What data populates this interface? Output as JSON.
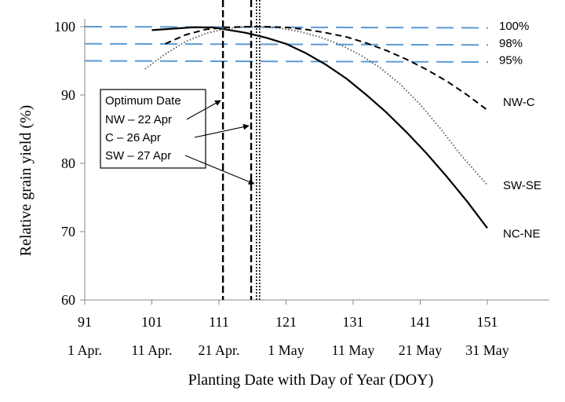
{
  "chart_data": {
    "type": "line",
    "xlabel": "Planting Date with Day of Year (DOY)",
    "ylabel": "Relative grain yield (%)",
    "xlim": [
      91,
      160
    ],
    "ylim": [
      60,
      100
    ],
    "x_ticks": [
      91,
      101,
      111,
      121,
      131,
      141,
      151
    ],
    "x_tick_labels": [
      "91",
      "101",
      "111",
      "121",
      "131",
      "141",
      "151"
    ],
    "date_labels": [
      "1 Apr.",
      "11 Apr.",
      "21 Apr.",
      "1 May",
      "11 May",
      "21 May",
      "31 May"
    ],
    "y_ticks": [
      60,
      70,
      80,
      90,
      100
    ],
    "y_tick_labels": [
      "60",
      "70",
      "80",
      "90",
      "100"
    ],
    "series": [
      {
        "name": "NC-NE",
        "style": "solid",
        "x": [
          101,
          104,
          107,
          110,
          112,
          115,
          118,
          121,
          124,
          127,
          130,
          133,
          136,
          139,
          142,
          145,
          148,
          151
        ],
        "y": [
          99.5,
          99.7,
          99.9,
          99.9,
          99.6,
          99.1,
          98.4,
          97.5,
          96.1,
          94.4,
          92.4,
          90.0,
          87.4,
          84.5,
          81.4,
          78.0,
          74.4,
          70.5
        ]
      },
      {
        "name": "SW-SE",
        "style": "dotted",
        "x": [
          100,
          103,
          106,
          109,
          112,
          115,
          117,
          120,
          123,
          126,
          129,
          132,
          135,
          138,
          141,
          144,
          147,
          151
        ],
        "y": [
          93.8,
          96.0,
          97.8,
          99.0,
          99.7,
          100.0,
          100.0,
          99.8,
          99.3,
          98.5,
          97.4,
          95.9,
          94.0,
          91.6,
          88.6,
          85.1,
          81.3,
          76.8
        ]
      },
      {
        "name": "NW-C",
        "style": "dashed",
        "x": [
          103,
          106,
          109,
          112,
          115,
          118,
          121,
          124,
          127,
          130,
          133,
          136,
          139,
          142,
          145,
          148,
          151
        ],
        "y": [
          97.5,
          98.8,
          99.6,
          99.9,
          100.0,
          100.0,
          99.9,
          99.6,
          99.1,
          98.5,
          97.6,
          96.5,
          95.2,
          93.7,
          92.0,
          90.0,
          87.8
        ]
      }
    ],
    "reference_lines": [
      {
        "label": "100%",
        "y": 100
      },
      {
        "label": "98%",
        "y": 97.5
      },
      {
        "label": "95%",
        "y": 95
      }
    ],
    "optimum_lines": [
      {
        "name": "NW",
        "x": 111.6,
        "style": "dashed"
      },
      {
        "name": "C",
        "x": 115.8,
        "style": "dashed"
      },
      {
        "name": "SW",
        "x": 116.6,
        "style": "dotted-double"
      }
    ],
    "annotation": {
      "title": "Optimum Date",
      "entries": [
        {
          "text": "NW – 22 Apr",
          "target_x": 111.6,
          "target_y": 89.2
        },
        {
          "text": "C – 26 Apr",
          "target_x": 115.8,
          "target_y": 85.5
        },
        {
          "text": "SW – 27 Apr",
          "target_x": 116.6,
          "target_y": 77.0
        }
      ]
    },
    "grid": false,
    "legend": "inline-right"
  }
}
